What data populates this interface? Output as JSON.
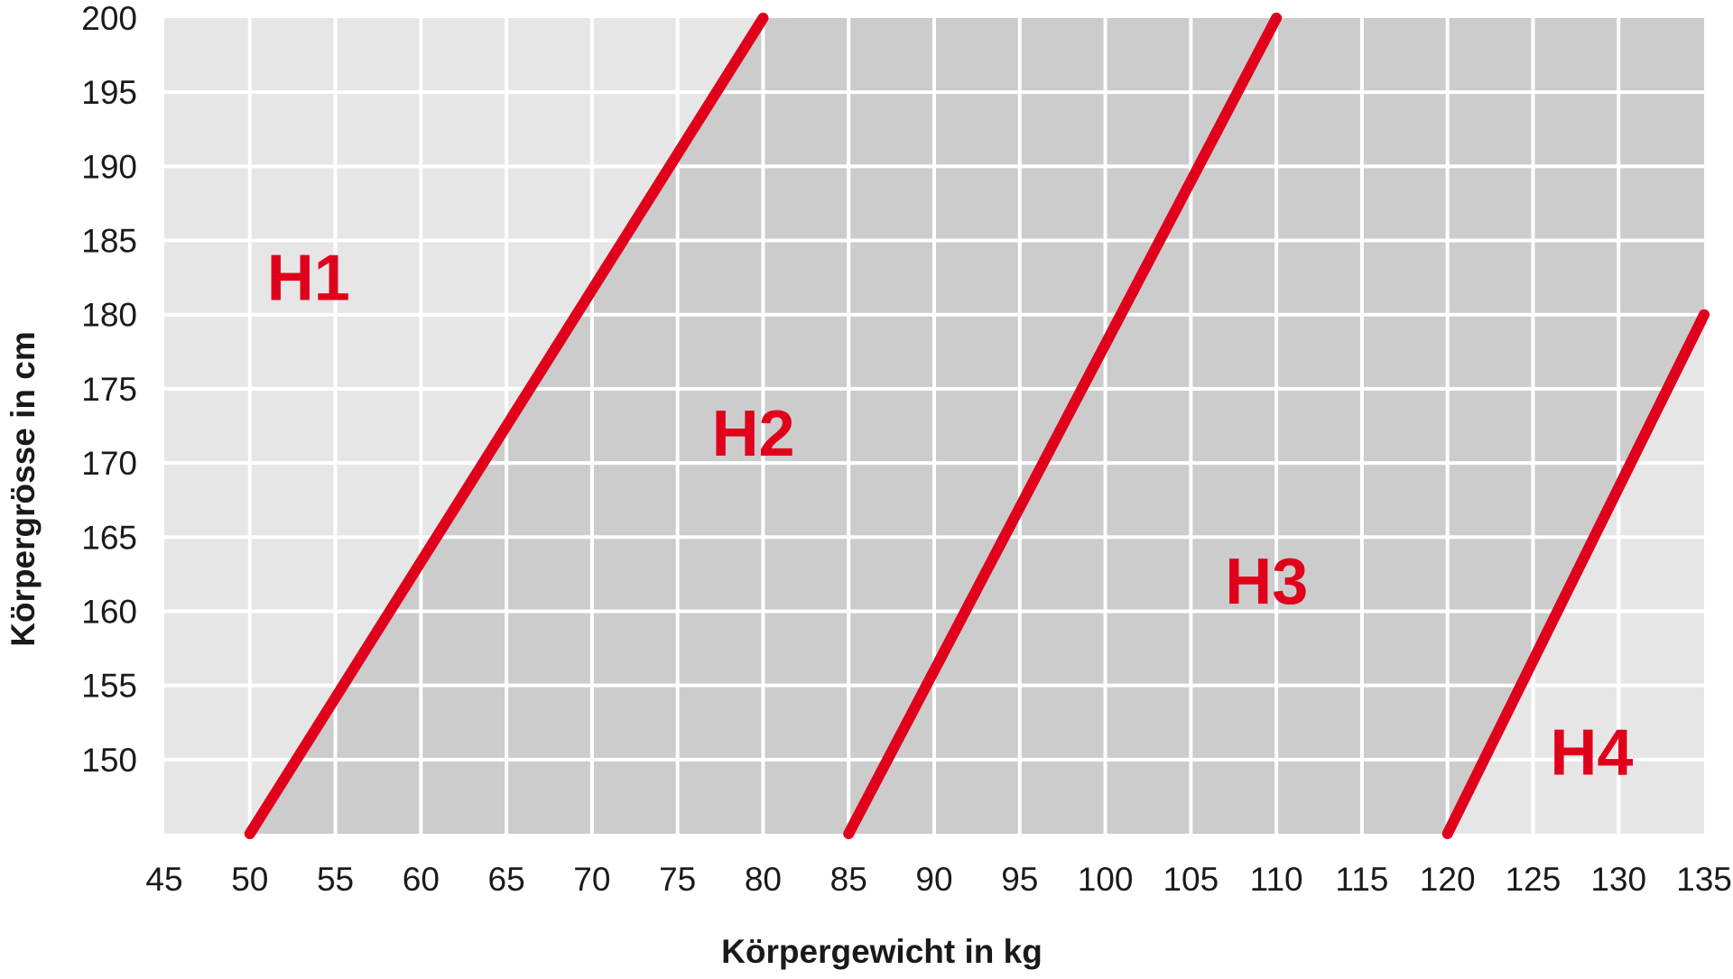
{
  "chart_data": {
    "type": "line",
    "title": "",
    "xlabel": "Körpergewicht in kg",
    "ylabel": "Körpergrösse in cm",
    "xlim": [
      45,
      135
    ],
    "ylim": [
      145,
      200
    ],
    "x_ticks": [
      45,
      50,
      55,
      60,
      65,
      70,
      75,
      80,
      85,
      90,
      95,
      100,
      105,
      110,
      115,
      120,
      125,
      130,
      135
    ],
    "y_ticks": [
      150,
      155,
      160,
      165,
      170,
      175,
      180,
      185,
      190,
      195,
      200
    ],
    "grid": true,
    "colors": {
      "line": "#e0001b",
      "region_light": "#e6e6e6",
      "region_dark": "#cccccc",
      "grid": "#ffffff",
      "text": "#1a1a1a"
    },
    "boundaries": [
      {
        "points": [
          [
            50,
            145
          ],
          [
            80,
            200
          ]
        ]
      },
      {
        "points": [
          [
            85,
            145
          ],
          [
            110,
            200
          ]
        ]
      },
      {
        "points": [
          [
            120,
            145
          ],
          [
            135,
            180
          ]
        ]
      }
    ],
    "regions": [
      {
        "label": "H1",
        "x": 51,
        "y": 181,
        "fill": "light"
      },
      {
        "label": "H2",
        "x": 77,
        "y": 170.5,
        "fill": "dark"
      },
      {
        "label": "H3",
        "x": 107,
        "y": 160.5,
        "fill": "dark"
      },
      {
        "label": "H4",
        "x": 126,
        "y": 149,
        "fill": "light"
      }
    ]
  }
}
